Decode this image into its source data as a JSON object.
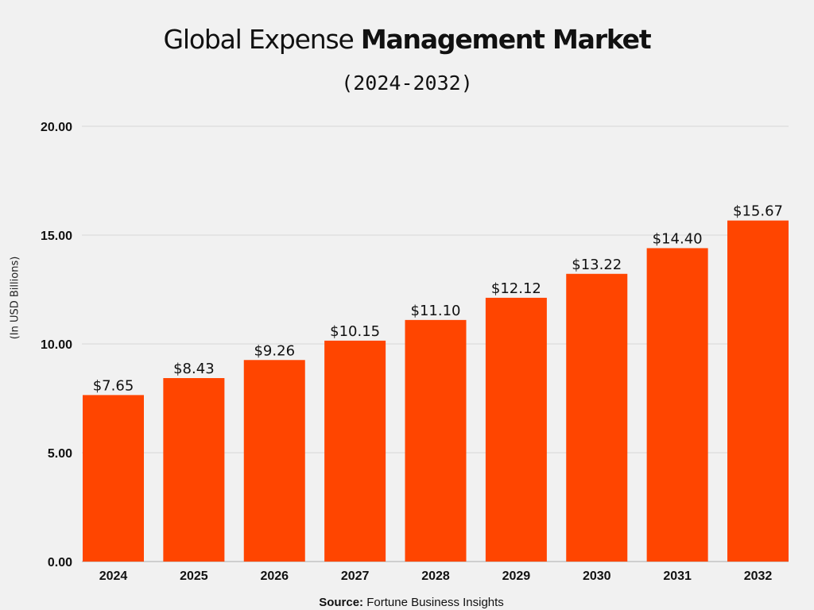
{
  "chart_data": {
    "type": "bar",
    "title_regular": "Global Expense ",
    "title_bold": "Management Market",
    "subtitle": "(2024-2032)",
    "ylabel": "(In USD Billions)",
    "xlabel": "",
    "categories": [
      "2024",
      "2025",
      "2026",
      "2027",
      "2028",
      "2029",
      "2030",
      "2031",
      "2032"
    ],
    "values": [
      7.65,
      8.43,
      9.26,
      10.15,
      11.1,
      12.12,
      13.22,
      14.4,
      15.67
    ],
    "data_labels": [
      "$7.65",
      "$8.43",
      "$9.26",
      "$10.15",
      "$11.10",
      "$12.12",
      "$13.22",
      "$14.40",
      "$15.67"
    ],
    "ylim": [
      0,
      20
    ],
    "yticks": [
      0,
      5,
      10,
      15,
      20
    ],
    "ytick_labels": [
      "0.00",
      "5.00",
      "10.00",
      "15.00",
      "20.00"
    ],
    "grid": true,
    "bar_color": "#ff4500"
  },
  "source": {
    "label": "Source:",
    "text": " Fortune Business Insights"
  }
}
